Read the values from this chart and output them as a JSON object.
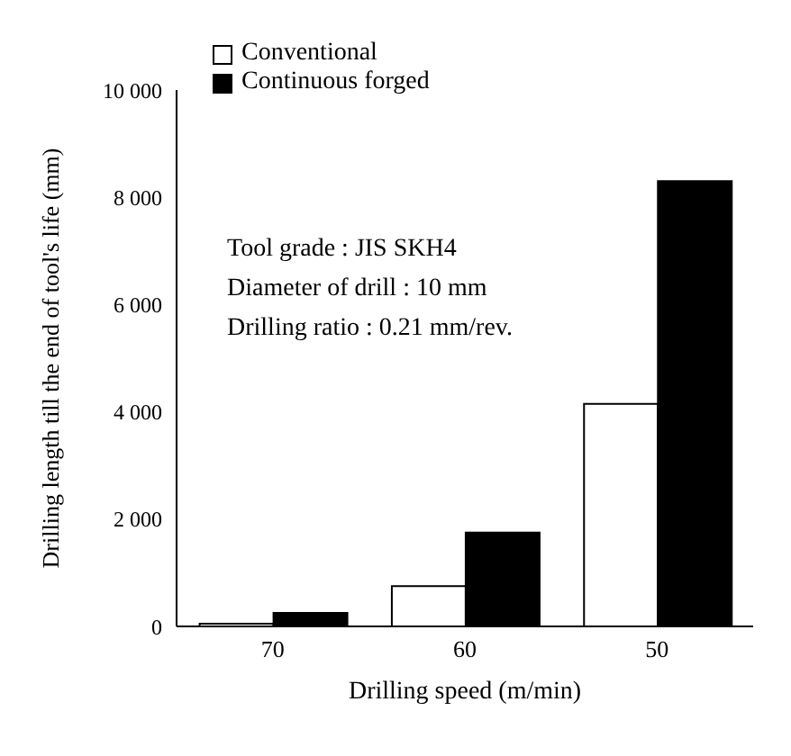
{
  "chart_data": {
    "type": "bar",
    "categories": [
      "70",
      "60",
      "50"
    ],
    "series": [
      {
        "name": "Conventional",
        "color": "#ffffff",
        "values": [
          50,
          750,
          4150
        ]
      },
      {
        "name": "Continuous forged",
        "color": "#000000",
        "values": [
          250,
          1750,
          8300
        ]
      }
    ],
    "xlabel": "Drilling speed (m/min)",
    "ylabel": "Drilling length till the end of tool's life (mm)",
    "ylim": [
      0,
      10000
    ],
    "yticks": [
      {
        "value": 0,
        "label": "0"
      },
      {
        "value": 2000,
        "label": "2 000"
      },
      {
        "value": 4000,
        "label": "4 000"
      },
      {
        "value": 6000,
        "label": "6 000"
      },
      {
        "value": 8000,
        "label": "8 000"
      },
      {
        "value": 10000,
        "label": "10 000"
      }
    ],
    "annotations": [
      "Tool grade : JIS SKH4",
      "Diameter of drill : 10 mm",
      "Drilling ratio : 0.21 mm/rev."
    ],
    "legend": "top",
    "grid": false
  }
}
